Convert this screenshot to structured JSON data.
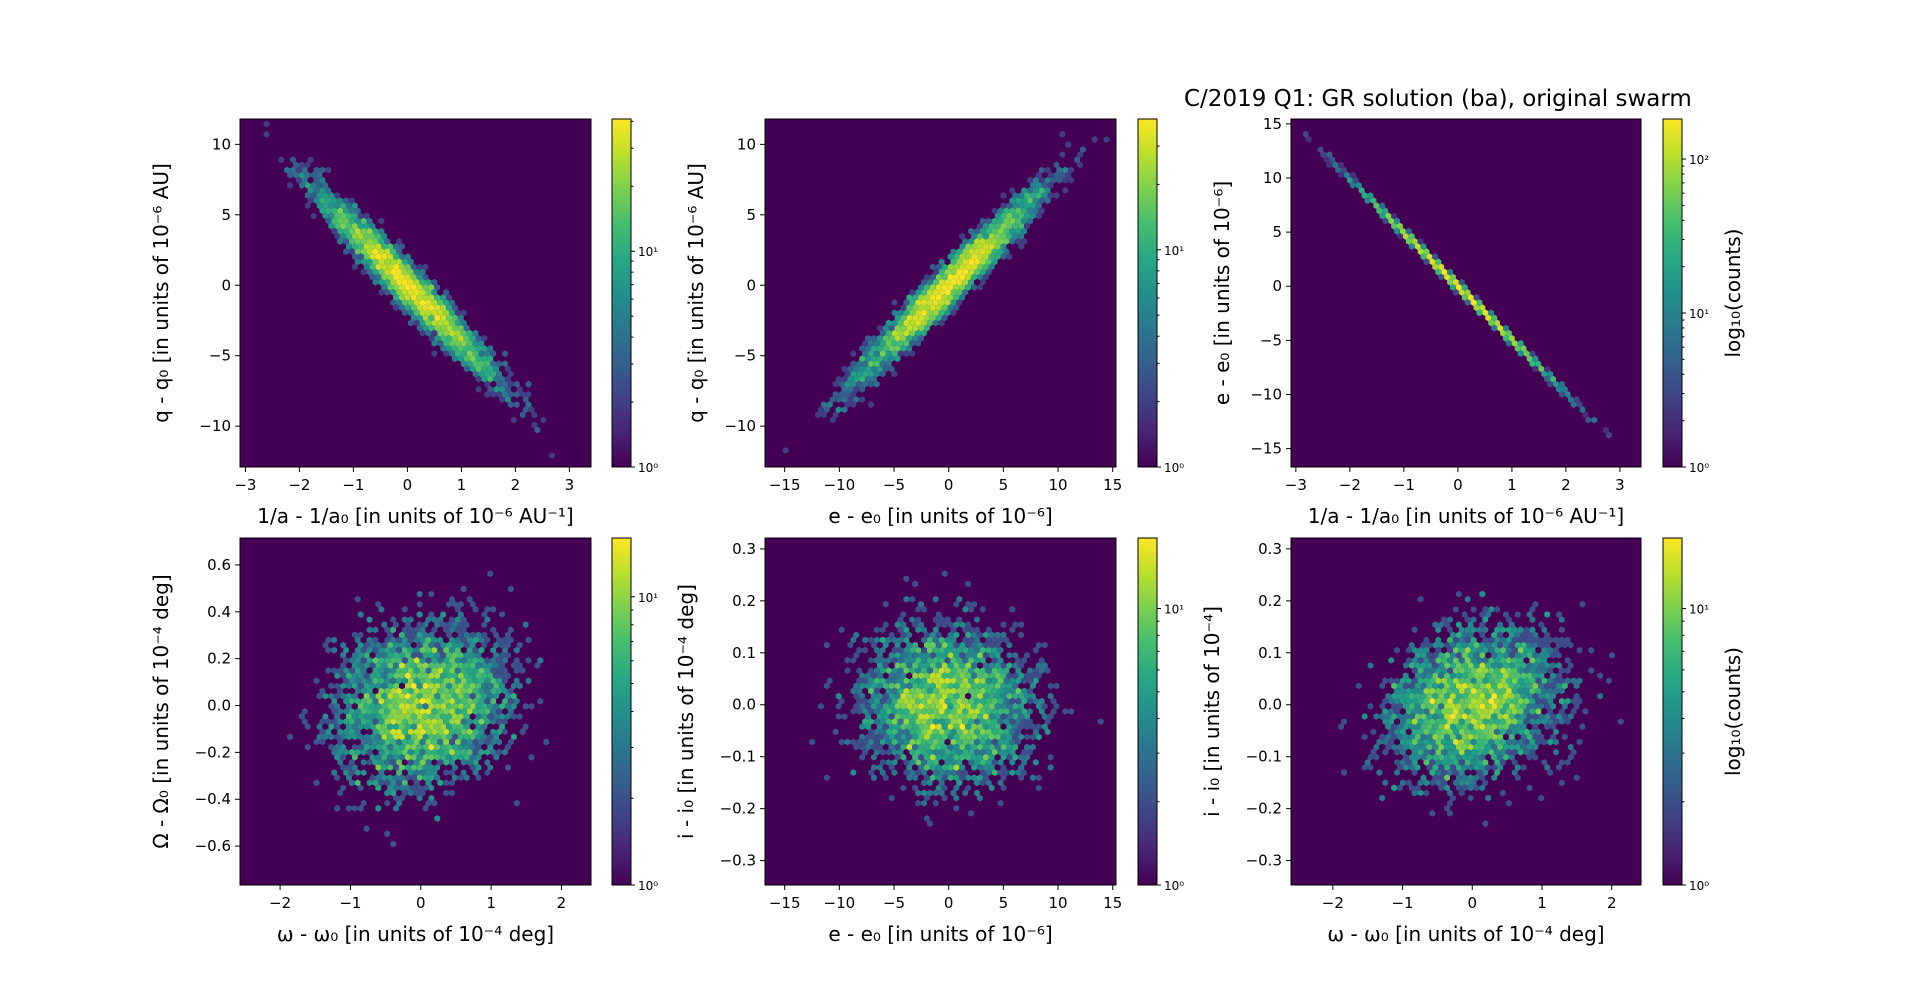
{
  "figure_title": "C/2019 Q1: GR solution (ba), original swarm",
  "colormap": "viridis",
  "background_color": "#440154",
  "chart_data": [
    {
      "type": "heatmap",
      "subtype": "hexbin",
      "color_scale": "log",
      "xlabel": "1/a - 1/a₀ [in units of 10⁻⁶ AU⁻¹]",
      "ylabel": "q - q₀ [in units of 10⁻⁶ AU]",
      "xlim": [
        -3.1,
        3.4
      ],
      "ylim": [
        -12.9,
        11.8
      ],
      "xticks": [
        -3,
        -2,
        -1,
        0,
        1,
        2,
        3
      ],
      "xtick_labels": [
        "−3",
        "−2",
        "−1",
        "0",
        "1",
        "2",
        "3"
      ],
      "yticks": [
        -10,
        -5,
        0,
        5,
        10
      ],
      "ytick_labels": [
        "−10",
        "−5",
        "0",
        "5",
        "10"
      ],
      "colorbar": {
        "range": [
          1,
          41
        ],
        "ticks": [
          1,
          10
        ],
        "tick_labels": [
          "10⁰",
          "10¹"
        ],
        "label": ""
      },
      "approx_distribution": {
        "x_mean": 0,
        "y_mean": 0,
        "x_std": 0.9,
        "y_std": 3.6,
        "correlation": -0.97
      }
    },
    {
      "type": "heatmap",
      "subtype": "hexbin",
      "color_scale": "log",
      "xlabel": "e - e₀ [in units of 10⁻⁶]",
      "ylabel": "q - q₀ [in units of 10⁻⁶ AU]",
      "xlim": [
        -16.8,
        15.3
      ],
      "ylim": [
        -12.9,
        11.8
      ],
      "xticks": [
        -15,
        -10,
        -5,
        0,
        5,
        10,
        15
      ],
      "xtick_labels": [
        "−15",
        "−10",
        "−5",
        "0",
        "5",
        "10",
        "15"
      ],
      "yticks": [
        -10,
        -5,
        0,
        5,
        10
      ],
      "ytick_labels": [
        "−10",
        "−5",
        "0",
        "5",
        "10"
      ],
      "colorbar": {
        "range": [
          1,
          40
        ],
        "ticks": [
          1,
          10
        ],
        "tick_labels": [
          "10⁰",
          "10¹"
        ],
        "label": ""
      },
      "approx_distribution": {
        "x_mean": 0,
        "y_mean": 0,
        "x_std": 4.5,
        "y_std": 3.6,
        "correlation": 0.97
      }
    },
    {
      "type": "heatmap",
      "subtype": "hexbin",
      "color_scale": "log",
      "xlabel": "1/a - 1/a₀ [in units of 10⁻⁶ AU⁻¹]",
      "ylabel": "e - e₀ [in units of 10⁻⁶]",
      "xlim": [
        -3.09,
        3.39
      ],
      "ylim": [
        -16.7,
        15.45
      ],
      "xticks": [
        -3,
        -2,
        -1,
        0,
        1,
        2,
        3
      ],
      "xtick_labels": [
        "−3",
        "−2",
        "−1",
        "0",
        "1",
        "2",
        "3"
      ],
      "yticks": [
        -15,
        -10,
        -5,
        0,
        5,
        10,
        15
      ],
      "ytick_labels": [
        "−15",
        "−10",
        "−5",
        "0",
        "5",
        "10",
        "15"
      ],
      "colorbar": {
        "range": [
          1,
          182
        ],
        "ticks": [
          1,
          10,
          100
        ],
        "tick_labels": [
          "10⁰",
          "10¹",
          "10²"
        ],
        "label": "log₁₀(counts)"
      },
      "approx_distribution": {
        "x_mean": 0,
        "y_mean": 0,
        "x_std": 0.9,
        "y_std": 4.45,
        "correlation": -0.9995
      }
    },
    {
      "type": "heatmap",
      "subtype": "hexbin",
      "color_scale": "log",
      "xlabel": "ω - ω₀ [in units of 10⁻⁴ deg]",
      "ylabel": "Ω - Ω₀ [in units of 10⁻⁴ deg]",
      "xlim": [
        -2.57,
        2.42
      ],
      "ylim": [
        -0.766,
        0.715
      ],
      "xticks": [
        -2,
        -1,
        0,
        1,
        2
      ],
      "xtick_labels": [
        "−2",
        "−1",
        "0",
        "1",
        "2"
      ],
      "yticks": [
        -0.6,
        -0.4,
        -0.2,
        0,
        0.2,
        0.4,
        0.6
      ],
      "ytick_labels": [
        "−0.6",
        "−0.4",
        "−0.2",
        "0.0",
        "0.2",
        "0.4",
        "0.6"
      ],
      "colorbar": {
        "range": [
          1,
          16
        ],
        "ticks": [
          1,
          10
        ],
        "tick_labels": [
          "10⁰",
          "10¹"
        ],
        "label": ""
      },
      "approx_distribution": {
        "x_mean": 0,
        "y_mean": 0,
        "x_std": 0.7,
        "y_std": 0.2,
        "correlation": 0.15
      }
    },
    {
      "type": "heatmap",
      "subtype": "hexbin",
      "color_scale": "log",
      "xlabel": "e - e₀ [in units of 10⁻⁶]",
      "ylabel": "i - i₀ [in units of 10⁻⁴ deg]",
      "xlim": [
        -16.8,
        15.3
      ],
      "ylim": [
        -0.347,
        0.321
      ],
      "xticks": [
        -15,
        -10,
        -5,
        0,
        5,
        10,
        15
      ],
      "xtick_labels": [
        "−15",
        "−10",
        "−5",
        "0",
        "5",
        "10",
        "15"
      ],
      "yticks": [
        -0.3,
        -0.2,
        -0.1,
        0,
        0.1,
        0.2,
        0.3
      ],
      "ytick_labels": [
        "−0.3",
        "−0.2",
        "−0.1",
        "0.0",
        "0.1",
        "0.2",
        "0.3"
      ],
      "colorbar": {
        "range": [
          1,
          18
        ],
        "ticks": [
          1,
          10
        ],
        "tick_labels": [
          "10⁰",
          "10¹"
        ],
        "label": ""
      },
      "approx_distribution": {
        "x_mean": 0,
        "y_mean": 0,
        "x_std": 4.5,
        "y_std": 0.085,
        "correlation": -0.05
      }
    },
    {
      "type": "heatmap",
      "subtype": "hexbin",
      "color_scale": "log",
      "xlabel": "ω - ω₀ [in units of 10⁻⁴ deg]",
      "ylabel": "i - i₀ [in units of 10⁻⁴]",
      "xlim": [
        -2.6,
        2.42
      ],
      "ylim": [
        -0.347,
        0.321
      ],
      "xticks": [
        -2,
        -1,
        0,
        1,
        2
      ],
      "xtick_labels": [
        "−2",
        "−1",
        "0",
        "1",
        "2"
      ],
      "yticks": [
        -0.3,
        -0.2,
        -0.1,
        0,
        0.1,
        0.2,
        0.3
      ],
      "ytick_labels": [
        "−0.3",
        "−0.2",
        "−0.1",
        "0.0",
        "0.1",
        "0.2",
        "0.3"
      ],
      "colorbar": {
        "range": [
          1,
          18
        ],
        "ticks": [
          1,
          10
        ],
        "tick_labels": [
          "10⁰",
          "10¹"
        ],
        "label": "log₁₀(counts)"
      },
      "approx_distribution": {
        "x_mean": 0,
        "y_mean": 0,
        "x_std": 0.7,
        "y_std": 0.085,
        "correlation": 0.2
      }
    }
  ]
}
